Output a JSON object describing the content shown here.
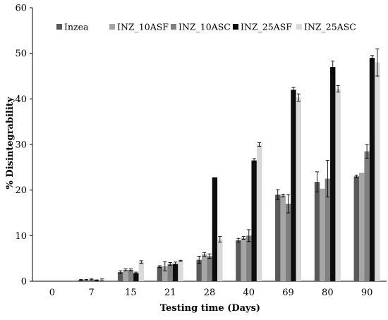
{
  "chart_data": {
    "type": "bar",
    "xlabel": "Testing time (Days)",
    "ylabel": "% Disintegrability",
    "ylim": [
      0,
      60
    ],
    "yticks": [
      0,
      10,
      20,
      30,
      40,
      50,
      60
    ],
    "grid": false,
    "legend_position": "top",
    "categories": [
      "0",
      "7",
      "15",
      "21",
      "28",
      "40",
      "69",
      "80",
      "90"
    ],
    "series": [
      {
        "name": "Inzea",
        "color": "#595959",
        "values": [
          0,
          0.3,
          2.0,
          3.2,
          4.7,
          9.0,
          19.0,
          21.8,
          23.0
        ],
        "errors": [
          0,
          0.1,
          0.3,
          0.2,
          0.8,
          0.4,
          1.1,
          2.2,
          0.3
        ]
      },
      {
        "name": "INZ_10ASF",
        "color": "#a6a6a6",
        "values": [
          0,
          0.3,
          2.5,
          3.3,
          5.9,
          9.5,
          18.8,
          20.3,
          23.8
        ],
        "errors": [
          0,
          0.1,
          0.2,
          1.0,
          0.4,
          0.3,
          0.3,
          0,
          0
        ]
      },
      {
        "name": "INZ_10ASC",
        "color": "#7f7f7f",
        "values": [
          0,
          0.4,
          2.5,
          3.8,
          5.5,
          10.0,
          17.0,
          22.5,
          28.5
        ],
        "errors": [
          0,
          0.1,
          0.2,
          0.3,
          0.5,
          1.3,
          2.0,
          4.0,
          1.5
        ]
      },
      {
        "name": "INZ_25ASF",
        "color": "#0d0d0d",
        "values": [
          0,
          0.2,
          1.8,
          3.8,
          22.8,
          26.5,
          42.0,
          47.0,
          49.0
        ],
        "errors": [
          0,
          0.1,
          0.2,
          0.4,
          0,
          0.4,
          0.5,
          1.3,
          0.5
        ]
      },
      {
        "name": "INZ_25ASC",
        "color": "#d9d9d9",
        "values": [
          0,
          0.3,
          4.2,
          4.5,
          9.2,
          30.0,
          40.3,
          42.2,
          48.0
        ],
        "errors": [
          0,
          0.2,
          0.3,
          0.1,
          0.6,
          0.4,
          0.8,
          0.7,
          3.0
        ]
      }
    ]
  }
}
